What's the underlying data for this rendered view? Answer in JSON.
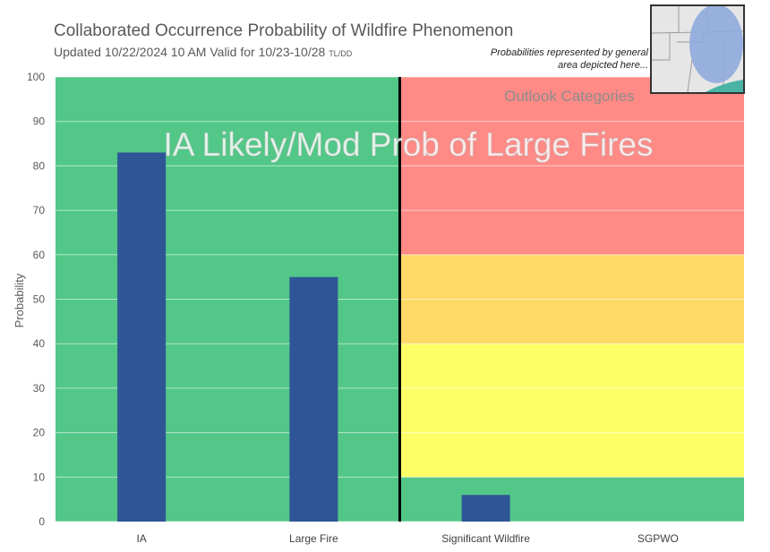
{
  "title": "Collaborated Occurrence Probability of Wildfire Phenomenon",
  "subtitle": {
    "text": "Updated 10/22/2024 10 AM Valid for 10/23-10/28",
    "initials": "TL/DD"
  },
  "inset_note": "Probabilities represented by general area depicted here...",
  "colors": {
    "bar": "#2f5597",
    "green": "#52c787",
    "red": "#ff8a86",
    "orange": "#ffd966",
    "yellow": "#ffff66",
    "divider": "#000000",
    "map_highlight": "#8faadc",
    "water": "#4bb3a6"
  },
  "chart_data": {
    "type": "bar",
    "title": "Collaborated Occurrence Probability of Wildfire Phenomenon",
    "ylabel": "Probability",
    "xlabel": "",
    "ylim": [
      0,
      100
    ],
    "yticks": [
      0,
      10,
      20,
      30,
      40,
      50,
      60,
      70,
      80,
      90,
      100
    ],
    "grid": true,
    "categories": [
      "IA",
      "Large Fire",
      "Significant Wildfire",
      "SGPWO"
    ],
    "values": [
      83,
      55,
      6,
      null
    ],
    "headline": "IA Likely/Mod Prob of Large Fires",
    "outlook_label": "Outlook Categories",
    "outlook_bands": [
      {
        "from": 0,
        "to": 10,
        "color": "#52c787"
      },
      {
        "from": 10,
        "to": 40,
        "color": "#ffff66"
      },
      {
        "from": 40,
        "to": 60,
        "color": "#ffd966"
      },
      {
        "from": 60,
        "to": 100,
        "color": "#ff8a86"
      }
    ],
    "left_panel_color": "#52c787"
  }
}
